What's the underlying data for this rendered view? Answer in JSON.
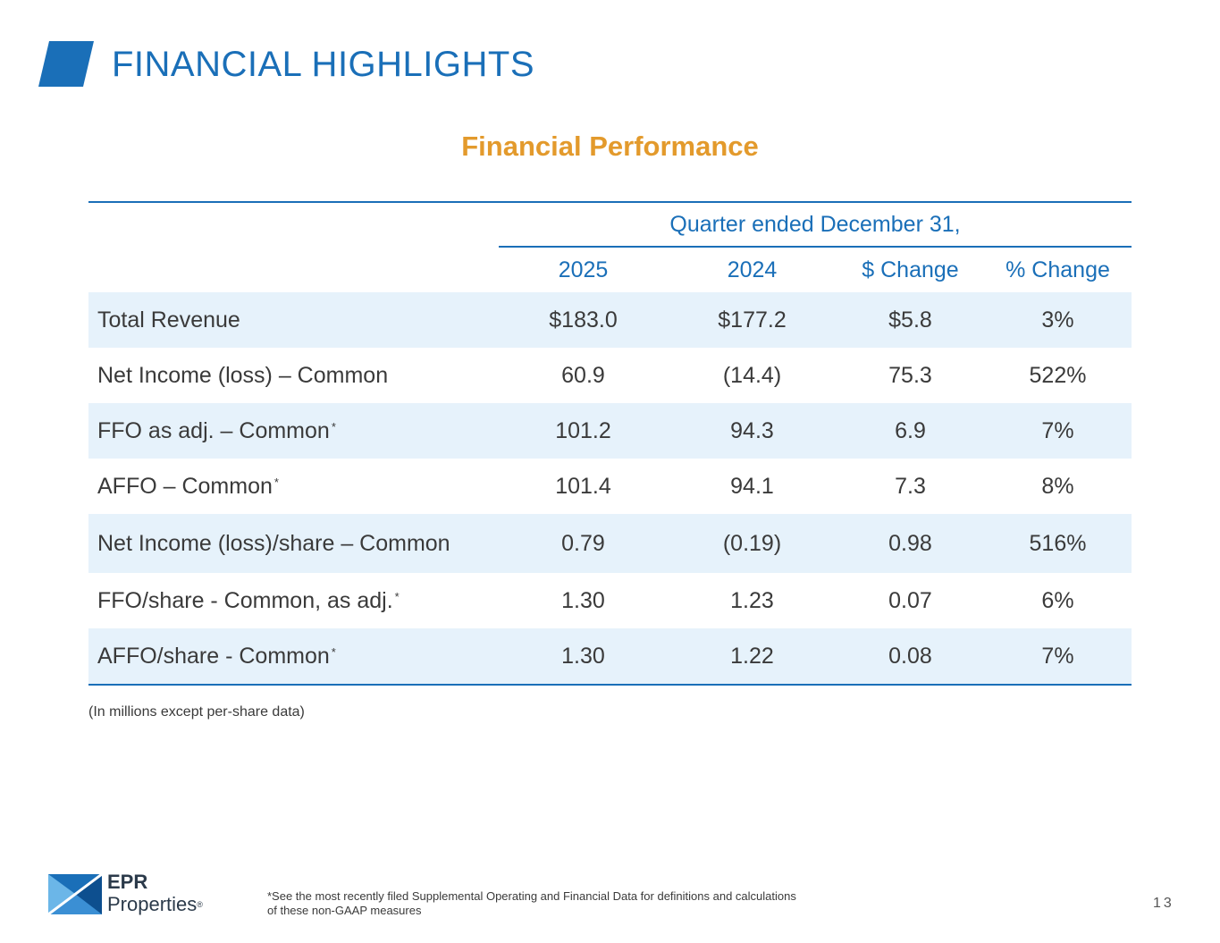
{
  "header": {
    "title": "FINANCIAL HIGHLIGHTS"
  },
  "section_title": "Financial Performance",
  "table": {
    "period_header": "Quarter ended December 31,",
    "columns": [
      "2025",
      "2024",
      "$ Change",
      "% Change"
    ],
    "rows": [
      {
        "label": "Total Revenue",
        "footnote": "",
        "values": [
          "$183.0",
          "$177.2",
          "$5.8",
          "3%"
        ]
      },
      {
        "label": "Net Income (loss)  – Common",
        "footnote": "",
        "values": [
          "60.9",
          "(14.4)",
          "75.3",
          "522%"
        ]
      },
      {
        "label": "FFO as adj. – Common",
        "footnote": "*",
        "values": [
          "101.2",
          "94.3",
          "6.9",
          "7%"
        ]
      },
      {
        "label": "AFFO – Common",
        "footnote": "*",
        "values": [
          "101.4",
          "94.1",
          "7.3",
          "8%"
        ]
      },
      {
        "label": "Net Income (loss)/share – Common",
        "footnote": "",
        "values": [
          "0.79",
          "(0.19)",
          "0.98",
          "516%"
        ]
      },
      {
        "label": "FFO/share - Common, as adj.",
        "footnote": "*",
        "values": [
          "1.30",
          "1.23",
          "0.07",
          "6%"
        ]
      },
      {
        "label": "AFFO/share - Common",
        "footnote": "*",
        "values": [
          "1.30",
          "1.22",
          "0.08",
          "7%"
        ]
      }
    ]
  },
  "units_note": "(In millions except per-share data)",
  "footer": {
    "brand_line1": "EPR",
    "brand_line2": "Properties",
    "registered_mark": "®",
    "footnote_line1": "*See the most recently filed Supplemental Operating and Financial Data for definitions and calculations",
    "footnote_line2": "of these non-GAAP measures",
    "page_number": "13"
  },
  "colors": {
    "primary": "#1a6fb8",
    "accent": "#e39a2c",
    "row_shade": "#e6f2fb"
  }
}
